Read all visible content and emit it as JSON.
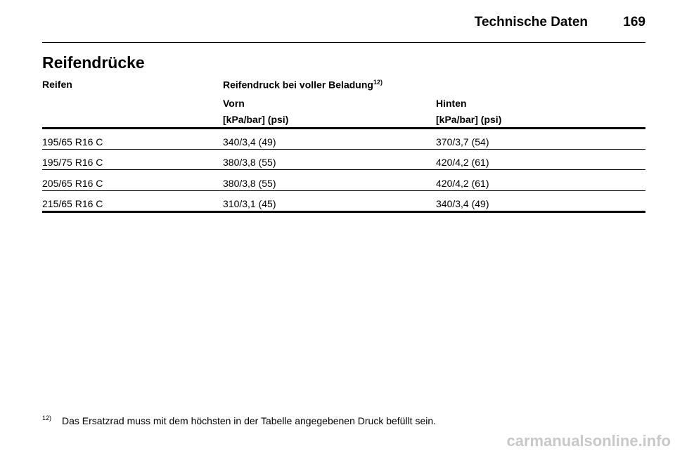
{
  "header": {
    "title": "Technische Daten",
    "page": "169"
  },
  "section_title": "Reifendrücke",
  "table": {
    "columns": [
      "Reifen",
      "Reifendruck bei voller Beladung"
    ],
    "column_footnote": "12)",
    "subheaders": [
      {
        "label": "Vorn",
        "unit": "[kPa/bar] (psi)"
      },
      {
        "label": "Hinten",
        "unit": "[kPa/bar] (psi)"
      }
    ],
    "rows": [
      [
        "195/65 R16 C",
        "340/3,4 (49)",
        "370/3,7 (54)"
      ],
      [
        "195/75 R16 C",
        "380/3,8 (55)",
        "420/4,2 (61)"
      ],
      [
        "205/65 R16 C",
        "380/3,8 (55)",
        "420/4,2 (61)"
      ],
      [
        "215/65 R16 C",
        "310/3,1 (45)",
        "340/3,4 (49)"
      ]
    ]
  },
  "footnote": {
    "marker": "12)",
    "text": "Das Ersatzrad muss mit dem höchsten in der Tabelle angegebenen Druck befüllt sein."
  },
  "watermark": "carmanualsonline.info"
}
